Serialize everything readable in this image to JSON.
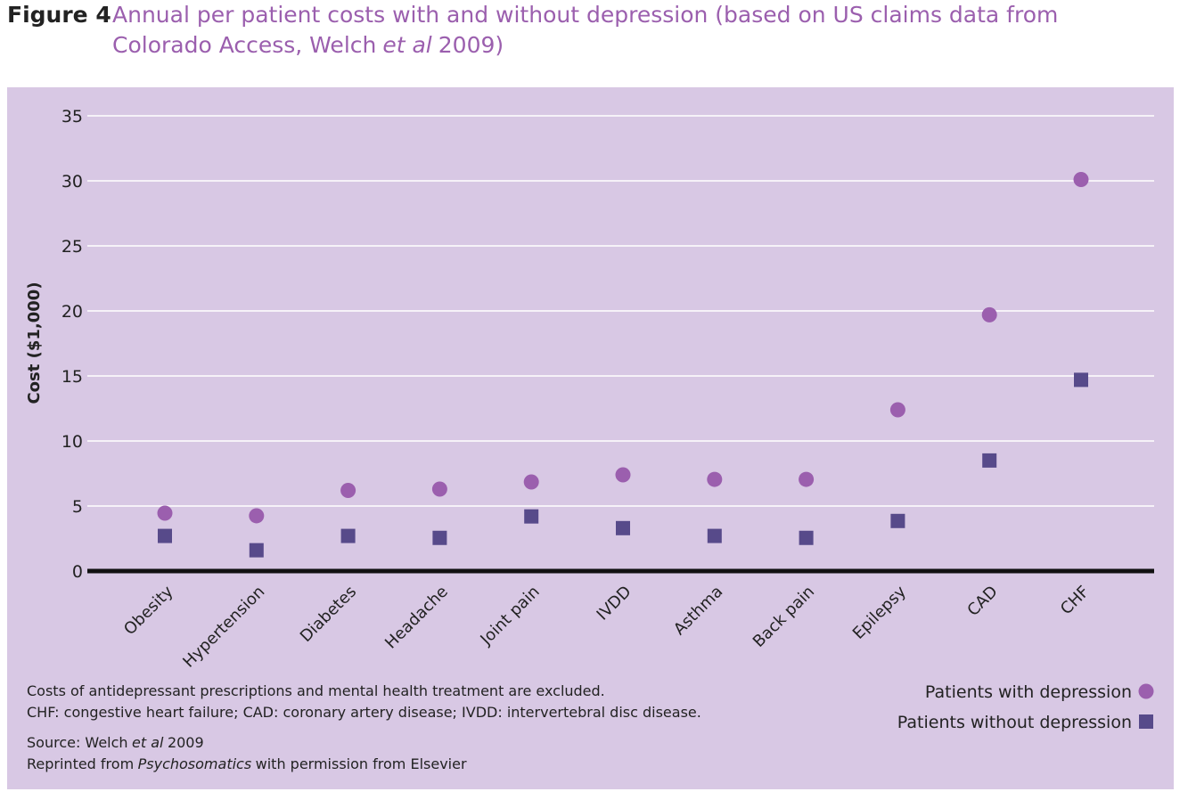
{
  "chart_data": {
    "type": "scatter",
    "figure_label": "Figure 4",
    "title": [
      "Annual per patient costs with and without depression (based on US claims data from Colorado Access, Welch",
      "et al",
      "2009)"
    ],
    "y_label": "Cost ($1,000)",
    "categories": [
      "Obesity",
      "Hypertension",
      "Diabetes",
      "Headache",
      "Joint pain",
      "IVDD",
      "Asthma",
      "Back pain",
      "Epilepsy",
      "CAD",
      "CHF"
    ],
    "series": [
      {
        "name": "Patients with depression",
        "color": "#9b5fae",
        "marker": "circle",
        "values": [
          4.45,
          4.25,
          6.2,
          6.3,
          6.85,
          7.4,
          7.05,
          7.05,
          12.4,
          19.7,
          30.1
        ]
      },
      {
        "name": "Patients without depression",
        "color": "#574a8a",
        "marker": "square",
        "values": [
          2.7,
          1.6,
          2.7,
          2.55,
          4.2,
          3.3,
          2.7,
          2.55,
          3.85,
          8.5,
          14.7
        ]
      }
    ],
    "ylim": [
      0,
      35
    ],
    "yticks": [
      0,
      5,
      10,
      15,
      20,
      25,
      30,
      35
    ],
    "grid": true,
    "legend": "lower right",
    "notes": [
      "Costs of antidepressant prescriptions and mental health treatment are excluded.",
      "CHF: congestive heart failure; CAD: coronary artery disease; IVDD: intervertebral disc disease."
    ],
    "source": [
      "Source: Welch",
      "et al",
      "2009"
    ],
    "reprint": [
      "Reprinted from",
      "Psychosomatics",
      "with permission from Elsevier"
    ]
  }
}
